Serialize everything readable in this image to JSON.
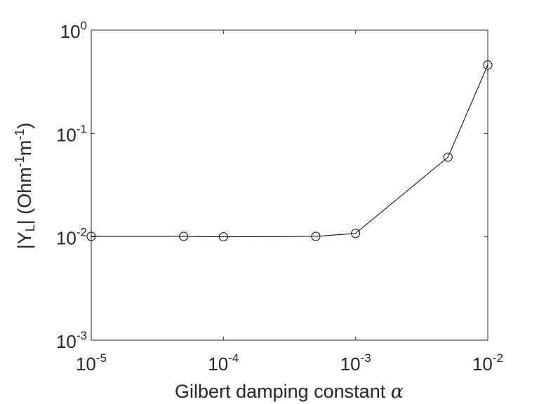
{
  "chart_data": {
    "type": "line",
    "xscale": "log",
    "yscale": "log",
    "xlim": [
      1e-05,
      0.01
    ],
    "ylim": [
      0.001,
      1
    ],
    "x_ticks": [
      {
        "base": "10",
        "exp": "-5",
        "value": 1e-05
      },
      {
        "base": "10",
        "exp": "-4",
        "value": 0.0001
      },
      {
        "base": "10",
        "exp": "-3",
        "value": 0.001
      },
      {
        "base": "10",
        "exp": "-2",
        "value": 0.01
      }
    ],
    "y_ticks": [
      {
        "base": "10",
        "exp": "-3",
        "value": 0.001
      },
      {
        "base": "10",
        "exp": "-2",
        "value": 0.01
      },
      {
        "base": "10",
        "exp": "-1",
        "value": 0.1
      },
      {
        "base": "10",
        "exp": "0",
        "value": 1
      }
    ],
    "xlabel": {
      "text": "Gilbert damping constant ",
      "symbol": "α"
    },
    "ylabel": {
      "part1": "|Y",
      "sub": "L",
      "part2": "| (Ohm",
      "sup1": "-1",
      "part3": "m",
      "sup2": "-1",
      "part4": ")"
    },
    "grid": false,
    "legend": "none",
    "series": [
      {
        "marker": "open-circle",
        "line_color": "#000000",
        "x": [
          1e-05,
          5e-05,
          0.0001,
          0.0005,
          0.001,
          0.005,
          0.01
        ],
        "y": [
          0.0101,
          0.0101,
          0.01,
          0.0101,
          0.0108,
          0.059,
          0.46
        ]
      }
    ]
  }
}
